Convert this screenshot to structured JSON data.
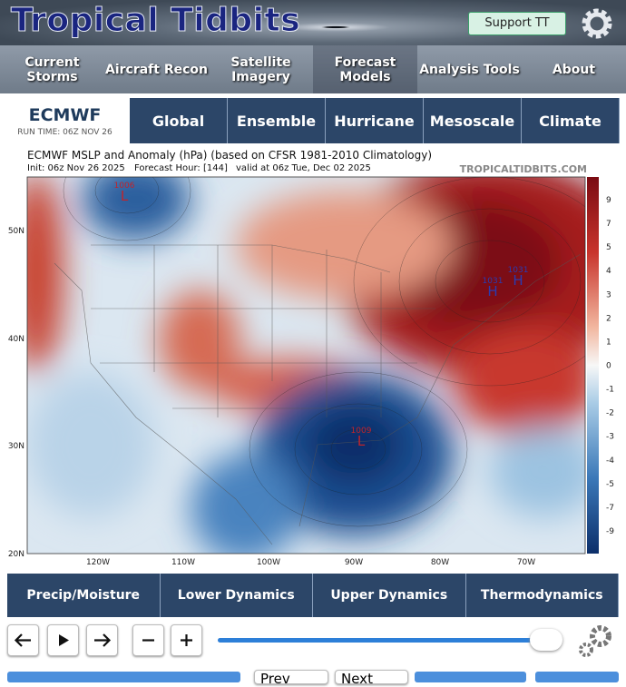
{
  "header": {
    "logo": "Tropical Tidbits",
    "support": "Support TT"
  },
  "nav": [
    "Current Storms",
    "Aircraft Recon",
    "Satellite Imagery",
    "Forecast Models",
    "Analysis Tools",
    "About"
  ],
  "model": {
    "name": "ECMWF",
    "run_time": "RUN TIME: 06Z NOV 26",
    "tabs": [
      "Global",
      "Ensemble",
      "Hurricane",
      "Mesoscale",
      "Climate"
    ]
  },
  "map": {
    "title": "ECMWF MSLP and Anomaly (hPa) (based on CFSR 1981-2010 Climatology)",
    "init": "Init: 06z Nov 26 2025",
    "forecast_hour": "Forecast Hour: [144]",
    "valid": "valid at 06z Tue, Dec 02 2025",
    "site": "TROPICALTIDBITS.COM",
    "lat_labels": [
      "50N",
      "40N",
      "30N",
      "20N"
    ],
    "lon_labels": [
      "120W",
      "110W",
      "100W",
      "90W",
      "80W",
      "70W"
    ],
    "colorbar": [
      9,
      7,
      5,
      4,
      3,
      2,
      1,
      0,
      -1,
      -2,
      -3,
      -4,
      -5,
      -7,
      -9
    ],
    "pressure_centers": [
      {
        "value": "1006",
        "type": "L"
      },
      {
        "value": "1009",
        "type": "L"
      },
      {
        "value": "1031",
        "type": "H"
      },
      {
        "value": "1031",
        "type": "H"
      }
    ]
  },
  "categories": [
    "Precip/Moisture",
    "Lower Dynamics",
    "Upper Dynamics",
    "Thermodynamics"
  ],
  "controls": {
    "prev": "Prev",
    "next": "Next"
  }
}
